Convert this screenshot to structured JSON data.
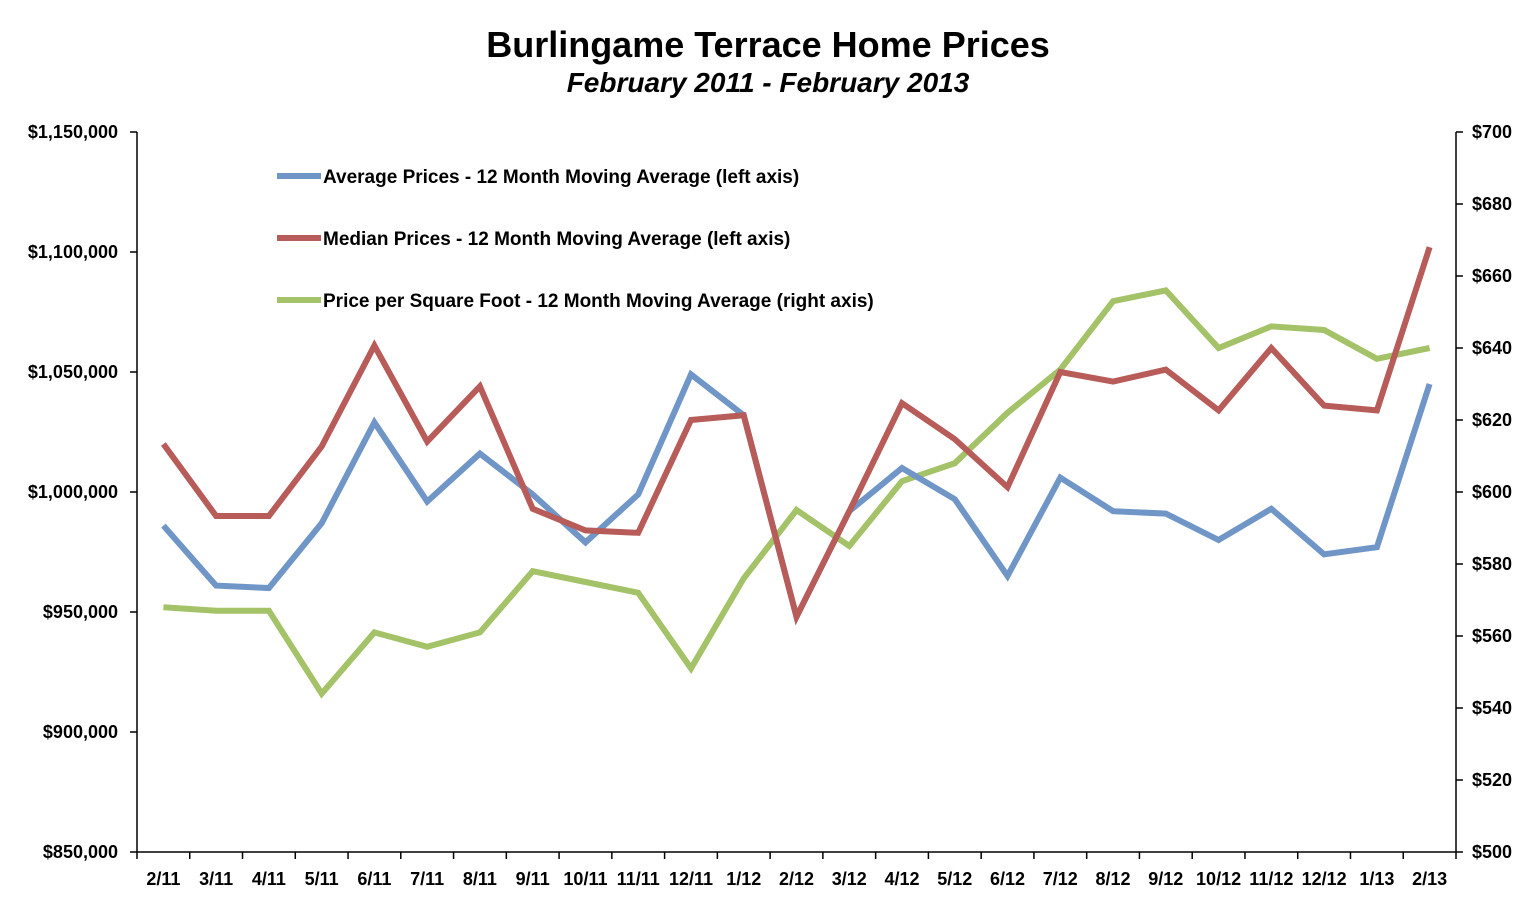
{
  "chart_data": {
    "type": "line",
    "title": "Burlingame Terrace Home Prices",
    "subtitle": "February 2011 - February 2013",
    "categories": [
      "2/11",
      "3/11",
      "4/11",
      "5/11",
      "6/11",
      "7/11",
      "8/11",
      "9/11",
      "10/11",
      "11/11",
      "12/11",
      "1/12",
      "2/12",
      "3/12",
      "4/12",
      "5/12",
      "6/12",
      "7/12",
      "8/12",
      "9/12",
      "10/12",
      "11/12",
      "12/12",
      "1/13",
      "2/13"
    ],
    "left_axis": {
      "ylim": [
        850000,
        1150000
      ],
      "ticks": [
        850000,
        900000,
        950000,
        1000000,
        1050000,
        1100000,
        1150000
      ],
      "tick_labels": [
        "$850,000",
        "$900,000",
        "$950,000",
        "$1,000,000",
        "$1,050,000",
        "$1,100,000",
        "$1,150,000"
      ]
    },
    "right_axis": {
      "ylim": [
        500,
        700
      ],
      "ticks": [
        500,
        520,
        540,
        560,
        580,
        600,
        620,
        640,
        660,
        680,
        700
      ],
      "tick_labels": [
        "$500",
        "$520",
        "$540",
        "$560",
        "$580",
        "$600",
        "$620",
        "$640",
        "$660",
        "$680",
        "$700"
      ]
    },
    "grid": false,
    "legend_position": "top-left",
    "series": [
      {
        "name": "Average Prices - 12 Month Moving Average (left axis)",
        "axis": "left",
        "color": "#7096c8",
        "values": [
          986000,
          961000,
          960000,
          987000,
          1029000,
          996000,
          1016000,
          999000,
          979000,
          999000,
          1049000,
          1032000,
          948000,
          992000,
          1010000,
          997000,
          965000,
          1006000,
          992000,
          991000,
          980000,
          993000,
          974000,
          977000,
          1045000
        ]
      },
      {
        "name": "Median Prices - 12 Month Moving Average (left axis)",
        "axis": "left",
        "color": "#b85c5a",
        "values": [
          1020000,
          990000,
          990000,
          1019000,
          1061000,
          1021000,
          1044000,
          993000,
          984000,
          983000,
          1030000,
          1032000,
          948000,
          992000,
          1037000,
          1022000,
          1002000,
          1050000,
          1046000,
          1051000,
          1034000,
          1060000,
          1036000,
          1034000,
          1102000
        ]
      },
      {
        "name": "Price per Square Foot - 12 Month Moving Average (right axis)",
        "axis": "right",
        "color": "#a4c267",
        "values": [
          568,
          567,
          567,
          544,
          561,
          557,
          561,
          578,
          575,
          572,
          551,
          576,
          595,
          585,
          603,
          608,
          622,
          634,
          653,
          656,
          640,
          646,
          645,
          637,
          640
        ]
      }
    ]
  }
}
